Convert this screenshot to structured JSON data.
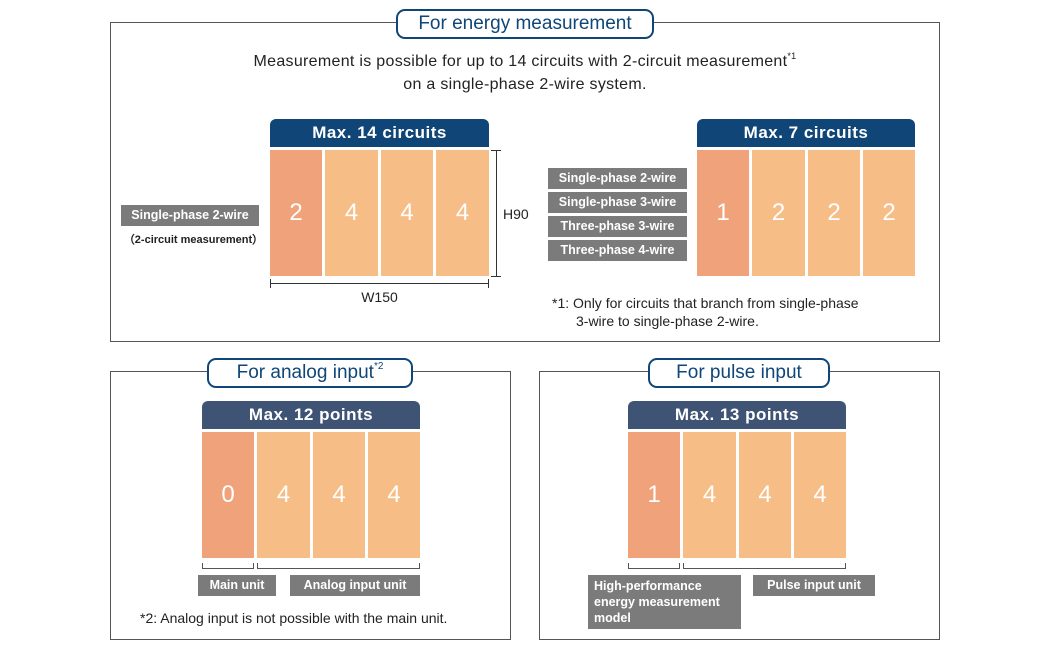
{
  "energy": {
    "title": "For energy measurement",
    "intro_line1": "Measurement is possible for up to 14 circuits with 2-circuit measurement",
    "intro_sup": "*1",
    "intro_line2": "on a single-phase 2-wire system.",
    "left": {
      "caption": "Max. 14 circuits",
      "cells": [
        "2",
        "4",
        "4",
        "4"
      ],
      "label": "Single-phase 2-wire",
      "sublabel": "（2-circuit measurement）",
      "height_label": "H90",
      "width_label": "W150"
    },
    "right": {
      "caption": "Max. 7 circuits",
      "cells": [
        "1",
        "2",
        "2",
        "2"
      ],
      "labels": [
        "Single-phase 2-wire",
        "Single-phase 3-wire",
        "Three-phase 3-wire",
        "Three-phase 4-wire"
      ],
      "note_line1": "*1: Only for circuits that branch from single-phase",
      "note_line2": "3-wire to single-phase 2-wire."
    }
  },
  "analog": {
    "title": "For analog input",
    "title_sup": "*2",
    "caption": "Max. 12 points",
    "cells": [
      "0",
      "4",
      "4",
      "4"
    ],
    "main_label": "Main unit",
    "unit_label": "Analog input unit",
    "note": "*2: Analog input is not possible with the main unit."
  },
  "pulse": {
    "title": "For pulse input",
    "caption": "Max. 13 points",
    "cells": [
      "1",
      "4",
      "4",
      "4"
    ],
    "main_label_lines": [
      "High-performance",
      "energy measurement",
      "model"
    ],
    "unit_label": "Pulse input unit"
  },
  "colors": {
    "navy": "#0f4677",
    "slate": "#3f5474",
    "main_cell": "#f0a27a",
    "ext_cell": "#f6bd86",
    "tag_gray": "#7b7b7b"
  }
}
